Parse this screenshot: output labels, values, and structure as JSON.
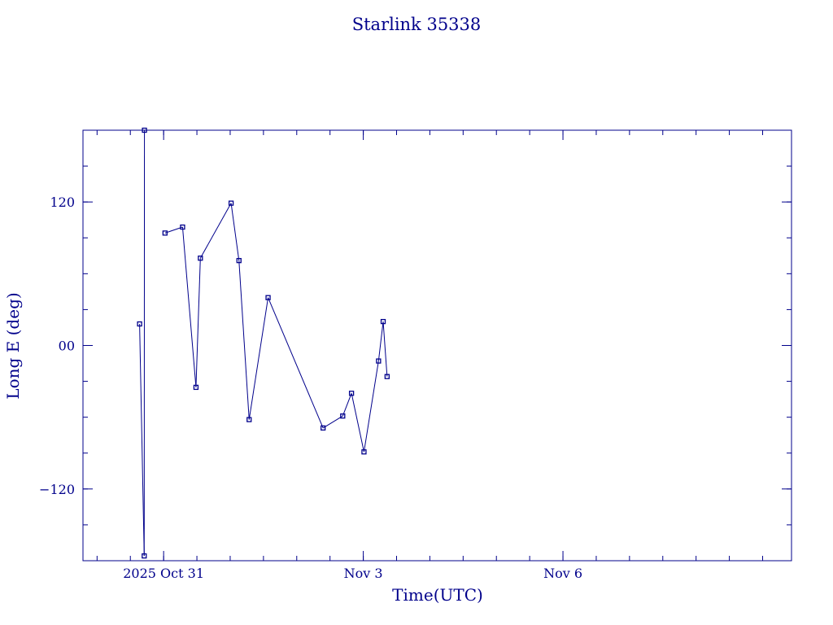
{
  "chart_data": {
    "type": "line",
    "title": "Starlink 35338",
    "xlabel": "Time(UTC)",
    "ylabel": "Long E (deg)",
    "x_ticks": [
      {
        "value": "2025-10-31",
        "label": "2025 Oct 31"
      },
      {
        "value": "2025-11-03",
        "label": "Nov  3"
      },
      {
        "value": "2025-11-06",
        "label": "Nov  6"
      }
    ],
    "y_ticks": [
      {
        "value": 120,
        "label": "120"
      },
      {
        "value": 0,
        "label": "00"
      },
      {
        "value": -120,
        "label": "−120"
      }
    ],
    "xlim": [
      "2025-10-29T18:55",
      "2025-11-09T10:25"
    ],
    "ylim": [
      -180,
      180
    ],
    "color": "#00008b",
    "series": [
      {
        "points": [
          {
            "x": "2025-10-30T15:20",
            "y": 18
          },
          {
            "x": "2025-10-30T17:00",
            "y": -176
          },
          {
            "x": "2025-10-30T17:05",
            "y": 180,
            "connected": false
          },
          {
            "x": "2025-10-31T00:30",
            "y": 94
          },
          {
            "x": "2025-10-31T06:50",
            "y": 99
          },
          {
            "x": "2025-10-31T11:40",
            "y": -35
          },
          {
            "x": "2025-10-31T13:15",
            "y": 73
          },
          {
            "x": "2025-11-01T00:20",
            "y": 119
          },
          {
            "x": "2025-11-01T03:10",
            "y": 71
          },
          {
            "x": "2025-11-01T06:50",
            "y": -62
          },
          {
            "x": "2025-11-01T13:40",
            "y": 40
          },
          {
            "x": "2025-11-02T09:30",
            "y": -69
          },
          {
            "x": "2025-11-02T16:35",
            "y": -59
          },
          {
            "x": "2025-11-02T19:45",
            "y": -40
          },
          {
            "x": "2025-11-03T00:15",
            "y": -89
          },
          {
            "x": "2025-11-03T05:30",
            "y": -13
          },
          {
            "x": "2025-11-03T07:10",
            "y": 20
          },
          {
            "x": "2025-11-03T08:35",
            "y": -26
          }
        ]
      }
    ]
  }
}
